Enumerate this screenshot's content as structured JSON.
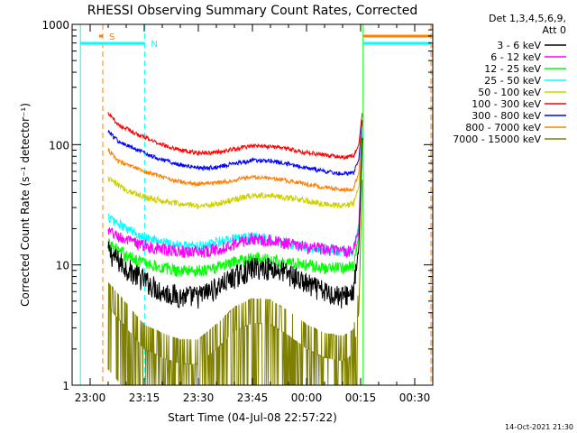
{
  "chart_data": {
    "type": "line",
    "title": "RHESSI Observing Summary Count Rates, Corrected",
    "xlabel": "Start Time (04-Jul-08 22:57:22)",
    "ylabel": "Corrected Count Rate (s⁻¹ detector⁻¹)",
    "yscale": "log",
    "ylim": [
      1,
      1000
    ],
    "y_ticks": [
      1,
      10,
      100,
      1000
    ],
    "y_tick_labels": [
      "1",
      "10",
      "100",
      "1000"
    ],
    "x_range_minutes": [
      -5,
      95
    ],
    "x_ticks": [
      {
        "label": "23:00",
        "minute": 0
      },
      {
        "label": "23:15",
        "minute": 15
      },
      {
        "label": "23:30",
        "minute": 30
      },
      {
        "label": "23:45",
        "minute": 45
      },
      {
        "label": "00:00",
        "minute": 60
      },
      {
        "label": "00:15",
        "minute": 75
      },
      {
        "label": "00:30",
        "minute": 90
      }
    ],
    "detectors_header": "Det 1,3,4,5,6,9,",
    "attenuator_label": "Att 0",
    "timestamp": "14-Oct-2021 21:30",
    "markers": [
      {
        "label": "S",
        "color": "#ff8000",
        "start_minute": 2.5,
        "end_minute": 94.5,
        "gap_from": 3.5,
        "gap_to": 75.7
      },
      {
        "label": "N",
        "color": "#00ffff",
        "start_minute": -2.7,
        "end_minute": 94.5,
        "gap_from": 15.1,
        "gap_to": 75.7
      }
    ],
    "vertical_lines": [
      {
        "minute": -2.7,
        "color": "#00ffff",
        "style": "solid"
      },
      {
        "minute": 3.5,
        "color": "#ff8000",
        "style": "dashed"
      },
      {
        "minute": 15.1,
        "color": "#00ffff",
        "style": "dashed"
      },
      {
        "minute": 75.7,
        "color": "#00ff00",
        "style": "solid"
      },
      {
        "minute": 94.5,
        "color": "#ff8000",
        "style": "dashed"
      },
      {
        "minute": 94.9,
        "color": "#00ffff",
        "style": "dashed"
      }
    ],
    "series": [
      {
        "name": "3 - 6 keV",
        "color": "#000000",
        "noise": 0.22,
        "points": [
          [
            5,
            13
          ],
          [
            10,
            9.5
          ],
          [
            15,
            7.5
          ],
          [
            20,
            6
          ],
          [
            25,
            5.5
          ],
          [
            30,
            5.5
          ],
          [
            35,
            6.5
          ],
          [
            40,
            8
          ],
          [
            45,
            9.5
          ],
          [
            50,
            9.5
          ],
          [
            55,
            8.5
          ],
          [
            60,
            7
          ],
          [
            65,
            6
          ],
          [
            70,
            5.5
          ],
          [
            73,
            6
          ],
          [
            74.5,
            14
          ],
          [
            75.5,
            130
          ]
        ]
      },
      {
        "name": "6 - 12 keV",
        "color": "#ff00ff",
        "noise": 0.12,
        "points": [
          [
            5,
            19
          ],
          [
            10,
            16
          ],
          [
            15,
            14.5
          ],
          [
            20,
            13.5
          ],
          [
            25,
            13
          ],
          [
            30,
            13
          ],
          [
            35,
            13.5
          ],
          [
            40,
            15
          ],
          [
            45,
            16.5
          ],
          [
            50,
            16
          ],
          [
            55,
            15
          ],
          [
            60,
            14
          ],
          [
            65,
            13.5
          ],
          [
            70,
            13
          ],
          [
            73,
            13
          ],
          [
            74.5,
            20
          ],
          [
            75.5,
            130
          ]
        ]
      },
      {
        "name": "12 - 25 keV",
        "color": "#00ff00",
        "noise": 0.12,
        "points": [
          [
            5,
            15
          ],
          [
            10,
            12
          ],
          [
            15,
            10.5
          ],
          [
            20,
            9.5
          ],
          [
            25,
            9
          ],
          [
            30,
            9
          ],
          [
            35,
            9.5
          ],
          [
            40,
            10.5
          ],
          [
            45,
            11.5
          ],
          [
            50,
            11
          ],
          [
            55,
            10.5
          ],
          [
            60,
            10
          ],
          [
            65,
            9.5
          ],
          [
            70,
            9.5
          ],
          [
            73,
            10
          ],
          [
            74.5,
            18
          ],
          [
            75.5,
            130
          ]
        ]
      },
      {
        "name": "25 - 50 keV",
        "color": "#00ffff",
        "noise": 0.1,
        "points": [
          [
            5,
            25
          ],
          [
            10,
            20
          ],
          [
            15,
            17
          ],
          [
            20,
            15.5
          ],
          [
            25,
            14.5
          ],
          [
            30,
            14.5
          ],
          [
            35,
            15.5
          ],
          [
            40,
            16.5
          ],
          [
            45,
            17
          ],
          [
            50,
            16.5
          ],
          [
            55,
            15
          ],
          [
            60,
            14
          ],
          [
            65,
            13.5
          ],
          [
            70,
            13
          ],
          [
            73,
            13
          ],
          [
            74.5,
            22
          ],
          [
            75.5,
            140
          ]
        ]
      },
      {
        "name": "50 - 100 keV",
        "color": "#d0d000",
        "noise": 0.06,
        "points": [
          [
            5,
            52
          ],
          [
            10,
            42
          ],
          [
            15,
            37
          ],
          [
            20,
            34
          ],
          [
            25,
            32
          ],
          [
            30,
            31
          ],
          [
            35,
            32
          ],
          [
            40,
            35
          ],
          [
            45,
            38
          ],
          [
            50,
            38
          ],
          [
            55,
            36
          ],
          [
            60,
            34
          ],
          [
            65,
            32
          ],
          [
            70,
            31
          ],
          [
            73,
            32
          ],
          [
            74.5,
            45
          ],
          [
            75.5,
            150
          ]
        ]
      },
      {
        "name": "100 - 300 keV",
        "color": "#ff0000",
        "noise": 0.04,
        "points": [
          [
            5,
            180
          ],
          [
            8,
            145
          ],
          [
            15,
            115
          ],
          [
            20,
            100
          ],
          [
            25,
            90
          ],
          [
            30,
            85
          ],
          [
            35,
            86
          ],
          [
            40,
            92
          ],
          [
            45,
            98
          ],
          [
            50,
            97
          ],
          [
            55,
            92
          ],
          [
            60,
            86
          ],
          [
            65,
            82
          ],
          [
            70,
            78
          ],
          [
            73,
            80
          ],
          [
            74.5,
            100
          ],
          [
            75.5,
            190
          ]
        ]
      },
      {
        "name": "300 - 800 keV",
        "color": "#0000ff",
        "noise": 0.04,
        "points": [
          [
            5,
            130
          ],
          [
            8,
            105
          ],
          [
            15,
            85
          ],
          [
            20,
            75
          ],
          [
            25,
            68
          ],
          [
            30,
            64
          ],
          [
            35,
            65
          ],
          [
            40,
            70
          ],
          [
            45,
            74
          ],
          [
            50,
            73
          ],
          [
            55,
            69
          ],
          [
            60,
            64
          ],
          [
            65,
            60
          ],
          [
            70,
            57
          ],
          [
            73,
            58
          ],
          [
            74.5,
            75
          ],
          [
            75.5,
            170
          ]
        ]
      },
      {
        "name": "800 - 7000 keV",
        "color": "#ff8000",
        "noise": 0.04,
        "points": [
          [
            5,
            90
          ],
          [
            8,
            72
          ],
          [
            15,
            60
          ],
          [
            20,
            54
          ],
          [
            25,
            49
          ],
          [
            30,
            47
          ],
          [
            35,
            48
          ],
          [
            40,
            51
          ],
          [
            45,
            54
          ],
          [
            50,
            53
          ],
          [
            55,
            50
          ],
          [
            60,
            47
          ],
          [
            65,
            44
          ],
          [
            70,
            42
          ],
          [
            73,
            43
          ],
          [
            74.5,
            58
          ],
          [
            75.5,
            160
          ]
        ]
      },
      {
        "name": "7000 - 15000 keV",
        "color": "#808000",
        "noise": 0.6,
        "sparse": true,
        "points": [
          [
            5,
            4.5
          ],
          [
            10,
            3
          ],
          [
            15,
            2
          ],
          [
            20,
            1.7
          ],
          [
            25,
            1.5
          ],
          [
            30,
            1.5
          ],
          [
            35,
            2
          ],
          [
            40,
            2.8
          ],
          [
            45,
            3.3
          ],
          [
            50,
            3.2
          ],
          [
            55,
            2.6
          ],
          [
            60,
            2
          ],
          [
            65,
            1.7
          ],
          [
            70,
            1.6
          ],
          [
            73,
            1.8
          ],
          [
            74.5,
            4
          ],
          [
            75.5,
            60
          ]
        ]
      }
    ]
  }
}
